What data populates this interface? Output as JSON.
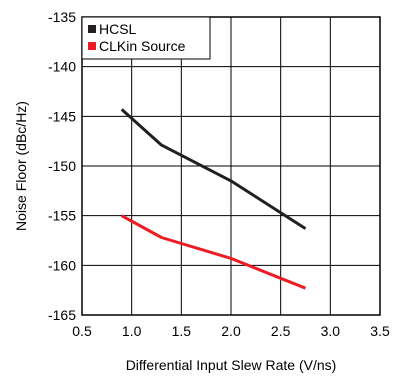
{
  "chart_data": {
    "type": "line",
    "title": "",
    "xlabel": "Differential Input Slew Rate (V/ns)",
    "ylabel": "Noise Floor (dBc/Hz)",
    "xlim": [
      0.5,
      3.5
    ],
    "ylim": [
      -165,
      -135
    ],
    "xticks": [
      0.5,
      1.0,
      1.5,
      2.0,
      2.5,
      3.0,
      3.5
    ],
    "xtick_labels": [
      "0.5",
      "1.0",
      "1.5",
      "2.0",
      "2.5",
      "3.0",
      "3.5"
    ],
    "yticks": [
      -165,
      -160,
      -155,
      -150,
      -145,
      -140,
      -135
    ],
    "ytick_labels": [
      "-165",
      "-160",
      "-155",
      "-150",
      "-145",
      "-140",
      "-135"
    ],
    "grid": true,
    "legend_position": "top-left",
    "series": [
      {
        "name": "HCSL",
        "color": "#231f20",
        "x": [
          0.9,
          1.3,
          2.0,
          2.75
        ],
        "y": [
          -144.3,
          -147.9,
          -151.5,
          -156.3
        ]
      },
      {
        "name": "CLKin Source",
        "color": "#ed1c24",
        "x": [
          0.9,
          1.3,
          2.0,
          2.75
        ],
        "y": [
          -155.0,
          -157.2,
          -159.3,
          -162.3
        ]
      }
    ]
  }
}
